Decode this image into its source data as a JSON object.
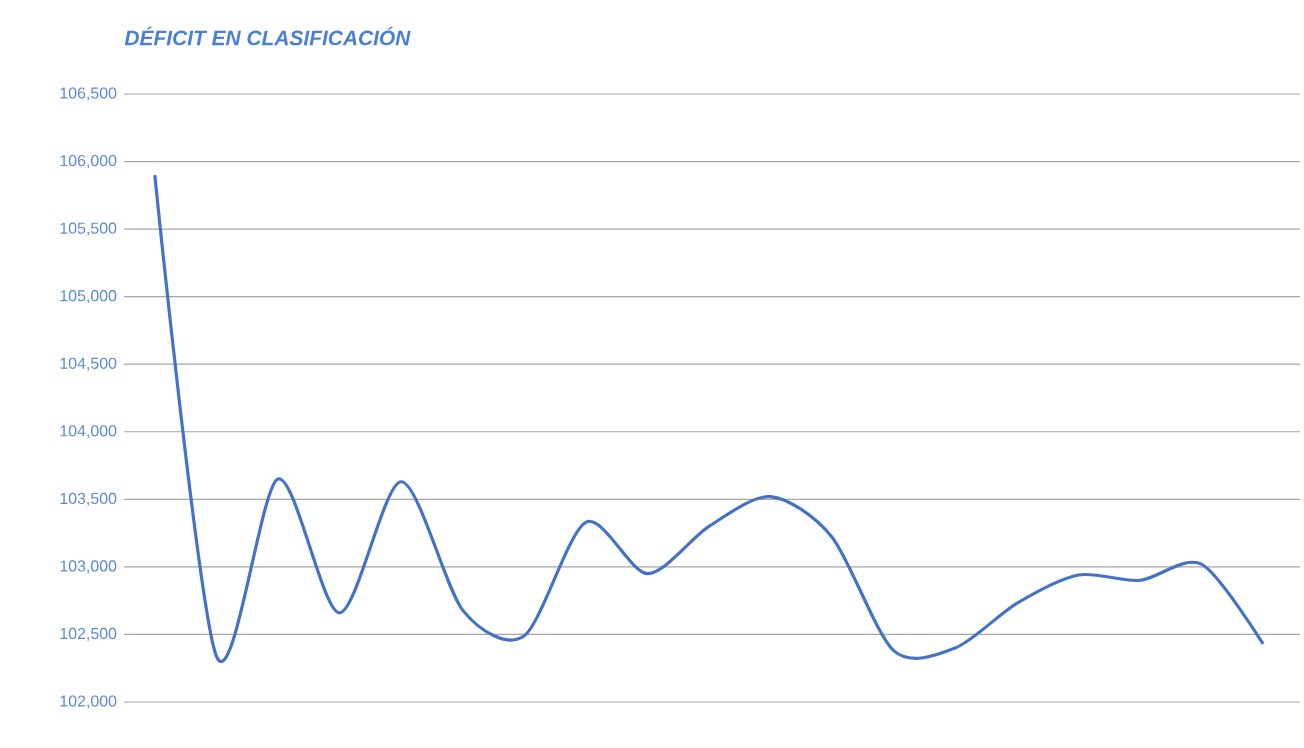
{
  "chart_data": {
    "type": "line",
    "title": "DÉFICIT EN CLASIFICACIÓN",
    "categories": [
      null,
      null,
      null,
      null,
      null,
      null,
      null,
      null,
      null,
      null,
      null,
      null,
      null,
      null,
      null,
      null,
      null,
      null,
      null
    ],
    "series": [
      {
        "color": "#4472c4",
        "values": [
          105900,
          102340,
          103650,
          102660,
          103630,
          102680,
          102490,
          103330,
          102950,
          103300,
          103520,
          103220,
          102380,
          102400,
          102730,
          102940,
          102900,
          103020,
          102430
        ]
      }
    ],
    "ylim": [
      102000,
      106500
    ],
    "yticks": [
      {
        "value": 102000,
        "label": "102,000"
      },
      {
        "value": 102500,
        "label": "102,500"
      },
      {
        "value": 103000,
        "label": "103,000"
      },
      {
        "value": 103500,
        "label": "103,500"
      },
      {
        "value": 104000,
        "label": "104,000"
      },
      {
        "value": 104500,
        "label": "104,500"
      },
      {
        "value": 105000,
        "label": "105,000"
      },
      {
        "value": 105500,
        "label": "105,500"
      },
      {
        "value": 106000,
        "label": "106,000"
      },
      {
        "value": 106500,
        "label": "106,500"
      }
    ],
    "grid": "y",
    "tick_labels": "y",
    "marker": "none",
    "line_style": "solid"
  }
}
